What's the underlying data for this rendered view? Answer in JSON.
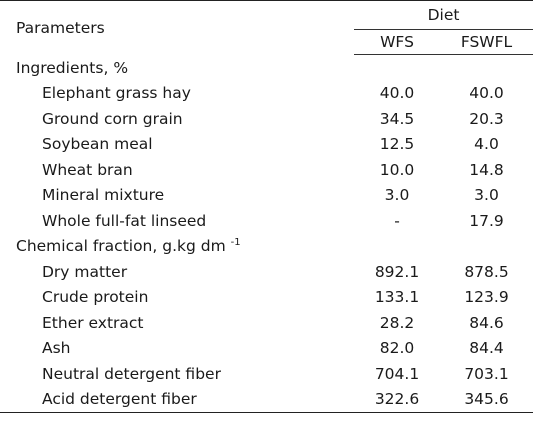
{
  "table": {
    "header": {
      "parameters": "Parameters",
      "diet": "Diet",
      "col_wfs": "WFS",
      "col_fswfl": "FSWFL"
    },
    "sections": [
      {
        "title": "Ingredients, %",
        "title_sup": "",
        "rows": [
          {
            "label": "Elephant grass hay",
            "wfs": "40.0",
            "fswfl": "40.0"
          },
          {
            "label": "Ground corn grain",
            "wfs": "34.5",
            "fswfl": "20.3"
          },
          {
            "label": "Soybean meal",
            "wfs": "12.5",
            "fswfl": "4.0"
          },
          {
            "label": "Wheat bran",
            "wfs": "10.0",
            "fswfl": "14.8"
          },
          {
            "label": "Mineral mixture",
            "wfs": "3.0",
            "fswfl": "3.0"
          },
          {
            "label": "Whole full-fat linseed",
            "wfs": "-",
            "fswfl": "17.9"
          }
        ]
      },
      {
        "title": "Chemical fraction, g.kg dm ",
        "title_sup": "-1",
        "rows": [
          {
            "label": "Dry matter",
            "wfs": "892.1",
            "fswfl": "878.5"
          },
          {
            "label": "Crude protein",
            "wfs": "133.1",
            "fswfl": "123.9"
          },
          {
            "label": "Ether extract",
            "wfs": "28.2",
            "fswfl": "84.6"
          },
          {
            "label": "Ash",
            "wfs": "82.0",
            "fswfl": "84.4"
          },
          {
            "label": "Neutral detergent fiber",
            "wfs": "704.1",
            "fswfl": "703.1"
          },
          {
            "label": "Acid detergent fiber",
            "wfs": "322.6",
            "fswfl": "345.6"
          }
        ]
      }
    ]
  }
}
